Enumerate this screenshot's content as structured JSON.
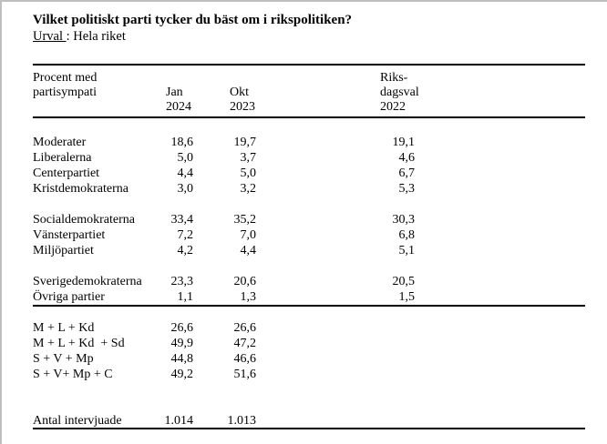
{
  "page": {
    "title": "Vilket politiskt parti tycker du bäst om i rikspolitiken?",
    "urval_label": "Urval ",
    "urval_rest": ": Hela riket"
  },
  "colors": {
    "text": "#000000",
    "rule": "#000000",
    "page_edge": "#bfbfbf",
    "background": "#ffffff"
  },
  "table": {
    "header": {
      "label_line1": "Procent med",
      "label_line2": "partisympati",
      "jan_line2": "Jan",
      "jan_line3": "2024",
      "okt_line2": "Okt",
      "okt_line3": "2023",
      "riks_line1": "Riks-",
      "riks_line2": "dagsval",
      "riks_line3": "2022"
    },
    "groups": [
      {
        "rows": [
          {
            "label": "Moderater",
            "jan": "18,6",
            "okt": "19,7",
            "riks": "19,1"
          },
          {
            "label": "Liberalerna",
            "jan": "5,0",
            "okt": "3,7",
            "riks": "4,6"
          },
          {
            "label": "Centerpartiet",
            "jan": "4,4",
            "okt": "5,0",
            "riks": "6,7"
          },
          {
            "label": "Kristdemokraterna",
            "jan": "3,0",
            "okt": "3,2",
            "riks": "5,3"
          }
        ]
      },
      {
        "rows": [
          {
            "label": "Socialdemokraterna",
            "jan": "33,4",
            "okt": "35,2",
            "riks": "30,3"
          },
          {
            "label": "Vänsterpartiet",
            "jan": "7,2",
            "okt": "7,0",
            "riks": "6,8"
          },
          {
            "label": "Miljöpartiet",
            "jan": "4,2",
            "okt": "4,4",
            "riks": "5,1"
          }
        ]
      },
      {
        "rows": [
          {
            "label": "Sverigedemokraterna",
            "jan": "23,3",
            "okt": "20,6",
            "riks": "20,5"
          },
          {
            "label": "Övriga partier",
            "jan": "1,1",
            "okt": "1,3",
            "riks": "1,5"
          }
        ]
      },
      {
        "rows": [
          {
            "label": "M + L + Kd",
            "jan": "26,6",
            "okt": "26,6",
            "riks": ""
          },
          {
            "label": "M + L + Kd  + Sd",
            "jan": "49,9",
            "okt": "47,2",
            "riks": ""
          },
          {
            "label": "S + V + Mp",
            "jan": "44,8",
            "okt": "46,6",
            "riks": ""
          },
          {
            "label": "S + V+ Mp + C",
            "jan": "49,2",
            "okt": "51,6",
            "riks": ""
          }
        ]
      }
    ],
    "footer_row": {
      "label": "Antal intervjuade",
      "jan": "1.014",
      "okt": "1.013",
      "riks": ""
    }
  }
}
